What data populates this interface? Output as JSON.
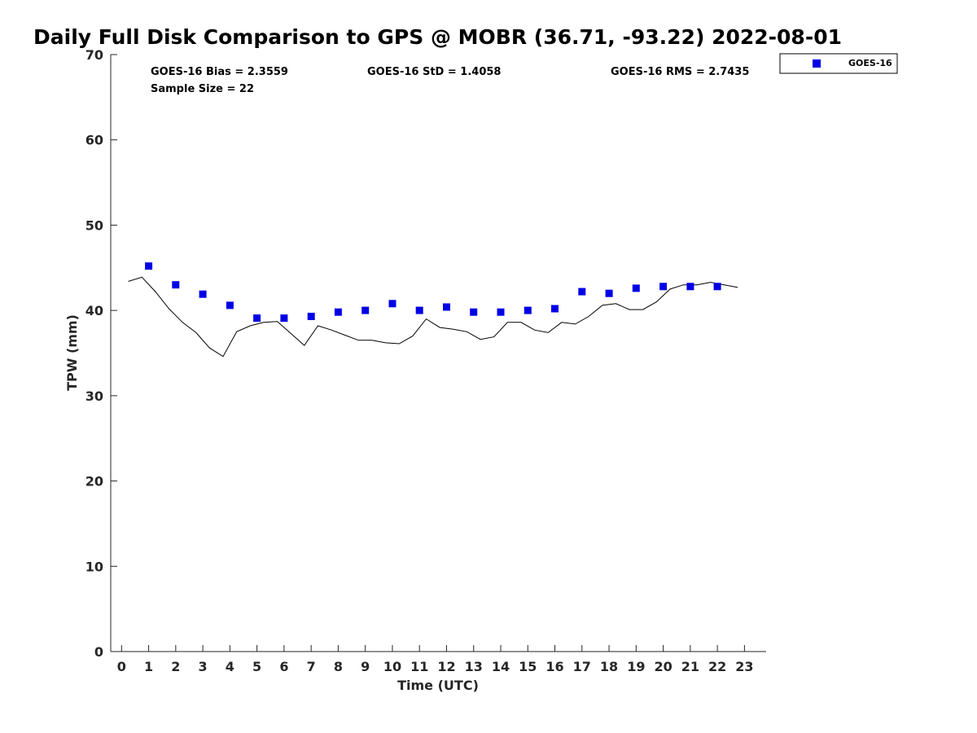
{
  "chart_data": {
    "type": "scatter",
    "title": "Daily Full Disk Comparison to GPS @ MOBR (36.71, -93.22) 2022-08-01",
    "xlabel": "Time (UTC)",
    "ylabel": "TPW (mm)",
    "xlim": [
      -0.4,
      23.8
    ],
    "ylim": [
      0,
      70
    ],
    "xticks": [
      0,
      1,
      2,
      3,
      4,
      5,
      6,
      7,
      8,
      9,
      10,
      11,
      12,
      13,
      14,
      15,
      16,
      17,
      18,
      19,
      20,
      21,
      22,
      23
    ],
    "yticks": [
      0,
      10,
      20,
      30,
      40,
      50,
      60,
      70
    ],
    "grid": false,
    "legend_position": "top-right, outside plot",
    "stats": {
      "bias": "GOES-16 Bias = 2.3559",
      "std": "GOES-16 StD = 1.4058",
      "rms": "GOES-16 RMS = 2.7435",
      "sample": "Sample Size = 22"
    },
    "series": [
      {
        "name": "GOES-16",
        "kind": "scatter",
        "marker": "square",
        "color": "#0000e6",
        "x": [
          1,
          2,
          3,
          4,
          5,
          6,
          7,
          8,
          9,
          10,
          11,
          12,
          13,
          14,
          15,
          16,
          17,
          18,
          19,
          20,
          21,
          22
        ],
        "y": [
          45.2,
          43.0,
          41.9,
          40.6,
          39.1,
          39.1,
          39.3,
          39.8,
          40.0,
          40.8,
          40.0,
          40.4,
          39.8,
          39.8,
          40.0,
          40.2,
          42.2,
          42.0,
          42.6,
          42.8,
          42.8,
          42.8
        ]
      },
      {
        "kind": "line",
        "color": "#000000",
        "x": [
          0.25,
          0.75,
          1.25,
          1.75,
          2.25,
          2.75,
          3.25,
          3.75,
          4.25,
          4.75,
          5.25,
          5.75,
          6.25,
          6.75,
          7.25,
          7.75,
          8.25,
          8.75,
          9.25,
          9.75,
          10.25,
          10.75,
          11.25,
          11.75,
          12.25,
          12.75,
          13.25,
          13.75,
          14.25,
          14.75,
          15.25,
          15.75,
          16.25,
          16.75,
          17.25,
          17.75,
          18.25,
          18.75,
          19.25,
          19.75,
          20.25,
          20.75,
          21.25,
          21.75,
          22.25,
          22.75
        ],
        "y": [
          43.4,
          43.9,
          42.2,
          40.2,
          38.6,
          37.4,
          35.6,
          34.6,
          37.5,
          38.2,
          38.6,
          38.7,
          37.3,
          35.9,
          38.2,
          37.7,
          37.1,
          36.5,
          36.5,
          36.2,
          36.1,
          37.0,
          39.0,
          38.0,
          37.8,
          37.5,
          36.6,
          36.9,
          38.6,
          38.6,
          37.7,
          37.4,
          38.6,
          38.4,
          39.3,
          40.6,
          40.8,
          40.1,
          40.1,
          41.0,
          42.5,
          43.0,
          43.0,
          43.3,
          43.0,
          42.7
        ]
      }
    ]
  }
}
